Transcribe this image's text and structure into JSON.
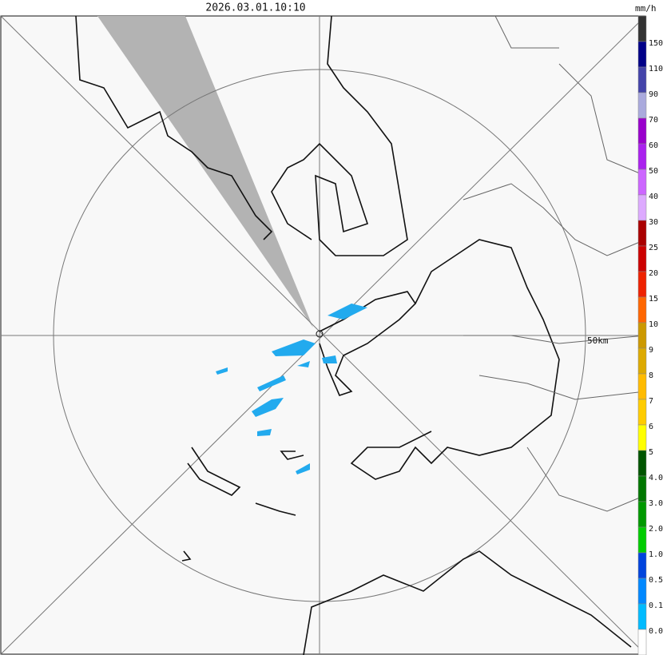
{
  "header": {
    "timestamp": "2026.03.01.10:10",
    "unit": "mm/h"
  },
  "map": {
    "range_label": "50km"
  },
  "legend": {
    "labels": [
      "150",
      "110",
      "90",
      "70",
      "60",
      "50",
      "40",
      "30",
      "25",
      "20",
      "15",
      "10",
      "9",
      "8",
      "7",
      "6",
      "5",
      "4.0",
      "3.0",
      "2.0",
      "1.0",
      "0.5",
      "0.1",
      "0.0"
    ],
    "colors": [
      "#333333",
      "#000088",
      "#4444aa",
      "#aaaadd",
      "#9900cc",
      "#aa22ee",
      "#cc66ff",
      "#ddaaff",
      "#aa0000",
      "#cc0000",
      "#ee2200",
      "#ff6600",
      "#cc9900",
      "#ddaa00",
      "#ffbb00",
      "#ffcc00",
      "#ffff00",
      "#005500",
      "#007700",
      "#009900",
      "#00cc00",
      "#0044dd",
      "#0088ff",
      "#00bbff",
      "#ffffff"
    ]
  }
}
